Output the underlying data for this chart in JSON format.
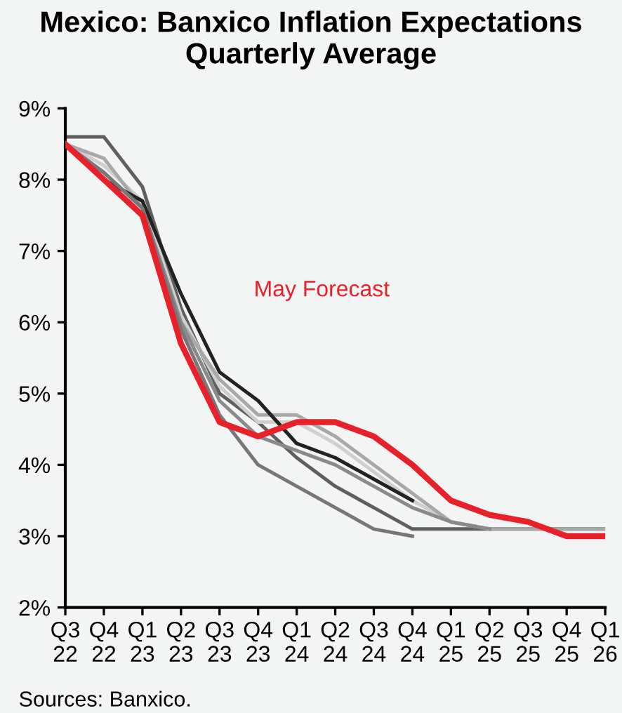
{
  "chart_data": {
    "type": "line",
    "title": "Mexico: Banxico Inflation Expectations Quarterly Average",
    "categories": [
      "Q3\n22",
      "Q4\n22",
      "Q1\n23",
      "Q2\n23",
      "Q3\n23",
      "Q4\n23",
      "Q1\n24",
      "Q2\n24",
      "Q3\n24",
      "Q4\n24",
      "Q1\n25",
      "Q2\n25",
      "Q3\n25",
      "Q4\n25",
      "Q1\n26"
    ],
    "series": [
      {
        "color": "#5f5f5f",
        "values": [
          8.6,
          8.6,
          7.9,
          6.2,
          5.0,
          4.6,
          4.1,
          3.7,
          3.4,
          3.1,
          3.1,
          3.1,
          3.1,
          3.1,
          3.1
        ]
      },
      {
        "color": "#cfcfcf",
        "values": [
          8.5,
          8.2,
          7.7,
          6.1,
          5.1,
          4.6,
          4.6,
          4.3,
          3.9,
          3.5,
          3.2,
          null,
          null,
          null,
          null
        ]
      },
      {
        "color": "#a8a8a8",
        "values": [
          8.5,
          8.3,
          7.6,
          6.0,
          5.2,
          4.7,
          4.7,
          4.4,
          4.0,
          3.6,
          3.2,
          3.1,
          3.1,
          3.1,
          3.1
        ]
      },
      {
        "color": "#222222",
        "values": [
          8.5,
          8.0,
          7.7,
          6.4,
          5.3,
          4.9,
          4.3,
          4.1,
          3.8,
          3.5,
          null,
          null,
          null,
          null,
          null
        ]
      },
      {
        "color": "#8a8a8a",
        "values": [
          8.5,
          8.1,
          7.6,
          6.0,
          4.9,
          4.4,
          4.2,
          4.0,
          3.7,
          3.4,
          3.2,
          3.1,
          null,
          null,
          null
        ]
      },
      {
        "color": "#777777",
        "values": [
          8.5,
          8.1,
          7.6,
          5.9,
          4.7,
          4.0,
          3.7,
          3.4,
          3.1,
          3.0,
          null,
          null,
          null,
          null,
          null
        ]
      },
      {
        "name": "May Forecast",
        "color": "#e8202a",
        "values": [
          8.5,
          8.0,
          7.5,
          5.7,
          4.6,
          4.4,
          4.6,
          4.6,
          4.4,
          4.0,
          3.5,
          3.3,
          3.2,
          3.0,
          3.0
        ]
      }
    ],
    "ylim": [
      2,
      9
    ],
    "yticks": [
      {
        "value": 2,
        "label": "2%"
      },
      {
        "value": 3,
        "label": "3%"
      },
      {
        "value": 4,
        "label": "4%"
      },
      {
        "value": 5,
        "label": "5%"
      },
      {
        "value": 6,
        "label": "6%"
      },
      {
        "value": 7,
        "label": "7%"
      },
      {
        "value": 8,
        "label": "8%"
      },
      {
        "value": 9,
        "label": "9%"
      }
    ],
    "grid": false,
    "legend": false,
    "marker": "none",
    "line_style": "solid",
    "annotations": [
      "Sources: Banxico."
    ]
  }
}
